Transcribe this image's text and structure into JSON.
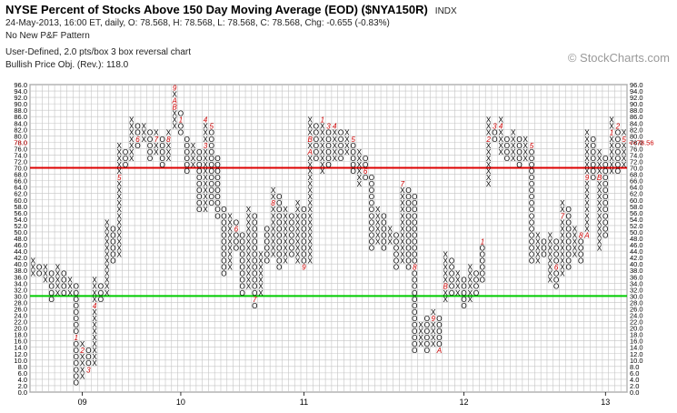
{
  "header": {
    "title": "NYSE Percent of Stocks Above 150 Day Moving Average (EOD) ($NYA150R)",
    "symbol_note": "INDX",
    "quote_line": "24-May-2013, 16:00 ET, daily, O: 78.568, H: 78.568, L: 78.568, C: 78.568, Chg: -0.655 (-0.83%)",
    "pattern_line": "No New P&F Pattern",
    "settings_line": "User-Defined, 2.0 pts/box 3 box reversal chart",
    "objective_line": "Bullish Price Obj. (Rev.): 118.0",
    "watermark": "© StockCharts.com"
  },
  "chart_data": {
    "type": "point-and-figure",
    "box_size": 2,
    "reversal": 3,
    "ylim": [
      0,
      96
    ],
    "y_ticks": [
      "0.0",
      "2.0",
      "4.0",
      "6.0",
      "8.0",
      "10.0",
      "12.0",
      "14.0",
      "16.0",
      "18.0",
      "20.0",
      "22.0",
      "24.0",
      "26.0",
      "28.0",
      "30.0",
      "32.0",
      "34.0",
      "36.0",
      "38.0",
      "40.0",
      "42.0",
      "44.0",
      "46.0",
      "48.0",
      "50.0",
      "52.0",
      "54.0",
      "56.0",
      "58.0",
      "60.0",
      "62.0",
      "64.0",
      "66.0",
      "68.0",
      "70.0",
      "72.0",
      "74.0",
      "76.0",
      "78.0",
      "80.0",
      "82.0",
      "84.0",
      "86.0",
      "88.0",
      "90.0",
      "92.0",
      "94.0",
      "96.0"
    ],
    "x_labels": [
      {
        "label": "09",
        "column": 8
      },
      {
        "label": "10",
        "column": 24
      },
      {
        "label": "11",
        "column": 44
      },
      {
        "label": "12",
        "column": 70
      },
      {
        "label": "13",
        "column": 93
      }
    ],
    "columns": [
      {
        "t": "X",
        "lo": 36,
        "hi": 40
      },
      {
        "t": "O",
        "lo": 36,
        "hi": 38
      },
      {
        "t": "X",
        "lo": 34,
        "hi": 38
      },
      {
        "t": "O",
        "lo": 28,
        "hi": 36
      },
      {
        "t": "X",
        "lo": 30,
        "hi": 38
      },
      {
        "t": "O",
        "lo": 30,
        "hi": 36
      },
      {
        "t": "X",
        "lo": 30,
        "hi": 34
      },
      {
        "t": "O",
        "lo": 2,
        "hi": 32,
        "m": [
          {
            "v": 16,
            "s": "1"
          }
        ]
      },
      {
        "t": "X",
        "lo": 4,
        "hi": 14,
        "m": [
          {
            "v": 12,
            "s": "2"
          }
        ]
      },
      {
        "t": "O",
        "lo": 6,
        "hi": 12,
        "m": [
          {
            "v": 6,
            "s": "3"
          }
        ]
      },
      {
        "t": "X",
        "lo": 8,
        "hi": 34,
        "m": [
          {
            "v": 26,
            "s": "4"
          }
        ]
      },
      {
        "t": "O",
        "lo": 28,
        "hi": 32
      },
      {
        "t": "X",
        "lo": 30,
        "hi": 52
      },
      {
        "t": "O",
        "lo": 40,
        "hi": 50
      },
      {
        "t": "X",
        "lo": 42,
        "hi": 76,
        "m": [
          {
            "v": 66,
            "s": "5"
          }
        ]
      },
      {
        "t": "O",
        "lo": 70,
        "hi": 74
      },
      {
        "t": "X",
        "lo": 72,
        "hi": 84
      },
      {
        "t": "O",
        "lo": 76,
        "hi": 82,
        "m": [
          {
            "v": 78,
            "s": "6"
          }
        ]
      },
      {
        "t": "X",
        "lo": 78,
        "hi": 82
      },
      {
        "t": "O",
        "lo": 72,
        "hi": 80
      },
      {
        "t": "X",
        "lo": 74,
        "hi": 80,
        "m": [
          {
            "v": 78,
            "s": "7"
          }
        ]
      },
      {
        "t": "O",
        "lo": 70,
        "hi": 78
      },
      {
        "t": "X",
        "lo": 72,
        "hi": 80,
        "m": [
          {
            "v": 78,
            "s": "8"
          }
        ]
      },
      {
        "t": "X",
        "lo": 82,
        "hi": 94,
        "m": [
          {
            "v": 94,
            "s": "9"
          },
          {
            "v": 90,
            "s": "A"
          },
          {
            "v": 88,
            "s": "B"
          }
        ]
      },
      {
        "t": "O",
        "lo": 80,
        "hi": 86,
        "m": [
          {
            "v": 84,
            "s": "1"
          }
        ]
      },
      {
        "t": "O",
        "lo": 68,
        "hi": 78
      },
      {
        "t": "X",
        "lo": 70,
        "hi": 76
      },
      {
        "t": "O",
        "lo": 56,
        "hi": 74
      },
      {
        "t": "X",
        "lo": 56,
        "hi": 84,
        "m": [
          {
            "v": 84,
            "s": "4"
          },
          {
            "v": 76,
            "s": "3"
          }
        ]
      },
      {
        "t": "O",
        "lo": 58,
        "hi": 82,
        "m": [
          {
            "v": 82,
            "s": "5"
          }
        ]
      },
      {
        "t": "O",
        "lo": 54,
        "hi": 72
      },
      {
        "t": "O",
        "lo": 36,
        "hi": 56
      },
      {
        "t": "X",
        "lo": 38,
        "hi": 54
      },
      {
        "t": "O",
        "lo": 44,
        "hi": 52,
        "m": [
          {
            "v": 50,
            "s": "6"
          }
        ]
      },
      {
        "t": "O",
        "lo": 30,
        "hi": 48
      },
      {
        "t": "X",
        "lo": 32,
        "hi": 56
      },
      {
        "t": "O",
        "lo": 26,
        "hi": 54,
        "m": [
          {
            "v": 28,
            "s": "7"
          }
        ]
      },
      {
        "t": "X",
        "lo": 30,
        "hi": 42
      },
      {
        "t": "O",
        "lo": 40,
        "hi": 50
      },
      {
        "t": "X",
        "lo": 42,
        "hi": 62,
        "m": [
          {
            "v": 58,
            "s": "8"
          }
        ]
      },
      {
        "t": "O",
        "lo": 38,
        "hi": 60
      },
      {
        "t": "X",
        "lo": 40,
        "hi": 56
      },
      {
        "t": "O",
        "lo": 42,
        "hi": 54
      },
      {
        "t": "X",
        "lo": 40,
        "hi": 58
      },
      {
        "t": "O",
        "lo": 38,
        "hi": 56,
        "m": [
          {
            "v": 38,
            "s": "9"
          }
        ]
      },
      {
        "t": "X",
        "lo": 40,
        "hi": 84,
        "m": [
          {
            "v": 78,
            "s": "B"
          },
          {
            "v": 74,
            "s": "A"
          }
        ]
      },
      {
        "t": "O",
        "lo": 72,
        "hi": 82
      },
      {
        "t": "X",
        "lo": 68,
        "hi": 84,
        "m": [
          {
            "v": 84,
            "s": "1"
          }
        ]
      },
      {
        "t": "O",
        "lo": 70,
        "hi": 82,
        "m": [
          {
            "v": 82,
            "s": "3"
          }
        ]
      },
      {
        "t": "X",
        "lo": 72,
        "hi": 82,
        "m": [
          {
            "v": 82,
            "s": "4"
          }
        ]
      },
      {
        "t": "O",
        "lo": 72,
        "hi": 80
      },
      {
        "t": "X",
        "lo": 74,
        "hi": 80
      },
      {
        "t": "O",
        "lo": 68,
        "hi": 78,
        "m": [
          {
            "v": 78,
            "s": "5"
          }
        ]
      },
      {
        "t": "X",
        "lo": 64,
        "hi": 74
      },
      {
        "t": "O",
        "lo": 66,
        "hi": 72,
        "m": [
          {
            "v": 68,
            "s": "6"
          }
        ]
      },
      {
        "t": "O",
        "lo": 44,
        "hi": 66
      },
      {
        "t": "X",
        "lo": 46,
        "hi": 56
      },
      {
        "t": "O",
        "lo": 44,
        "hi": 54
      },
      {
        "t": "X",
        "lo": 46,
        "hi": 50
      },
      {
        "t": "O",
        "lo": 38,
        "hi": 48
      },
      {
        "t": "X",
        "lo": 40,
        "hi": 64,
        "m": [
          {
            "v": 64,
            "s": "7"
          }
        ]
      },
      {
        "t": "O",
        "lo": 38,
        "hi": 62
      },
      {
        "t": "O",
        "lo": 12,
        "hi": 60,
        "m": [
          {
            "v": 38,
            "s": "8"
          }
        ]
      },
      {
        "t": "X",
        "lo": 14,
        "hi": 20
      },
      {
        "t": "O",
        "lo": 12,
        "hi": 22
      },
      {
        "t": "X",
        "lo": 14,
        "hi": 24,
        "m": [
          {
            "v": 22,
            "s": "9"
          }
        ]
      },
      {
        "t": "O",
        "lo": 12,
        "hi": 22,
        "m": [
          {
            "v": 12,
            "s": "A"
          }
        ]
      },
      {
        "t": "X",
        "lo": 28,
        "hi": 42,
        "m": [
          {
            "v": 32,
            "s": "B"
          }
        ]
      },
      {
        "t": "O",
        "lo": 30,
        "hi": 40
      },
      {
        "t": "X",
        "lo": 30,
        "hi": 36
      },
      {
        "t": "O",
        "lo": 26,
        "hi": 34
      },
      {
        "t": "X",
        "lo": 28,
        "hi": 38
      },
      {
        "t": "O",
        "lo": 30,
        "hi": 36
      },
      {
        "t": "O",
        "lo": 34,
        "hi": 46,
        "m": [
          {
            "v": 46,
            "s": "1"
          }
        ]
      },
      {
        "t": "X",
        "lo": 64,
        "hi": 84,
        "m": [
          {
            "v": 78,
            "s": "2"
          }
        ]
      },
      {
        "t": "O",
        "lo": 78,
        "hi": 82,
        "m": [
          {
            "v": 82,
            "s": "3"
          }
        ]
      },
      {
        "t": "X",
        "lo": 74,
        "hi": 84,
        "m": [
          {
            "v": 82,
            "s": "4"
          }
        ]
      },
      {
        "t": "O",
        "lo": 72,
        "hi": 78
      },
      {
        "t": "X",
        "lo": 72,
        "hi": 80
      },
      {
        "t": "O",
        "lo": 70,
        "hi": 78
      },
      {
        "t": "X",
        "lo": 72,
        "hi": 78
      },
      {
        "t": "O",
        "lo": 40,
        "hi": 76,
        "m": [
          {
            "v": 76,
            "s": "5"
          }
        ]
      },
      {
        "t": "X",
        "lo": 40,
        "hi": 48
      },
      {
        "t": "O",
        "lo": 42,
        "hi": 46
      },
      {
        "t": "X",
        "lo": 34,
        "hi": 48
      },
      {
        "t": "O",
        "lo": 32,
        "hi": 46,
        "m": [
          {
            "v": 38,
            "s": "6"
          }
        ]
      },
      {
        "t": "X",
        "lo": 36,
        "hi": 58,
        "m": [
          {
            "v": 54,
            "s": "7"
          }
        ]
      },
      {
        "t": "O",
        "lo": 38,
        "hi": 56
      },
      {
        "t": "X",
        "lo": 42,
        "hi": 50
      },
      {
        "t": "O",
        "lo": 40,
        "hi": 48,
        "m": [
          {
            "v": 48,
            "s": "8"
          }
        ]
      },
      {
        "t": "X",
        "lo": 48,
        "hi": 80,
        "m": [
          {
            "v": 66,
            "s": "9"
          },
          {
            "v": 48,
            "s": "A"
          }
        ]
      },
      {
        "t": "O",
        "lo": 66,
        "hi": 78
      },
      {
        "t": "X",
        "lo": 44,
        "hi": 74,
        "m": [
          {
            "v": 66,
            "s": "B"
          }
        ]
      },
      {
        "t": "O",
        "lo": 48,
        "hi": 72
      },
      {
        "t": "X",
        "lo": 68,
        "hi": 84,
        "m": [
          {
            "v": 80,
            "s": "1"
          }
        ]
      },
      {
        "t": "O",
        "lo": 68,
        "hi": 82,
        "m": [
          {
            "v": 82,
            "s": "2"
          }
        ]
      },
      {
        "t": "X",
        "lo": 70,
        "hi": 80,
        "m": [
          {
            "v": 78,
            "s": "5"
          }
        ]
      }
    ],
    "reference_lines": [
      {
        "value": 30,
        "color": "#00cc00"
      },
      {
        "value": 70,
        "color": "#dd0000"
      }
    ],
    "last_price_marker": {
      "value": 78,
      "left_label": "78.0",
      "right_label": "<<78.56"
    },
    "colors": {
      "X": "#000000",
      "O": "#000000",
      "month_marker": "#cc0000",
      "price_label": "#cc0000"
    }
  }
}
